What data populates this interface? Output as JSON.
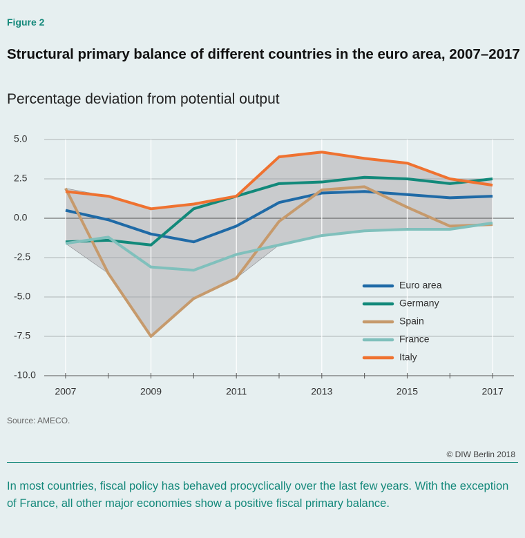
{
  "figure_label": "Figure 2",
  "chart_data": {
    "type": "line",
    "title": "Structural primary balance of different countries in the euro area, 2007–2017",
    "subtitle": "Percentage deviation from potential output",
    "x": [
      2007,
      2008,
      2009,
      2010,
      2011,
      2012,
      2013,
      2014,
      2015,
      2016,
      2017
    ],
    "xlim": [
      2006.5,
      2017.5
    ],
    "xticks": [
      2007,
      2009,
      2011,
      2013,
      2015,
      2017
    ],
    "ylim": [
      -10,
      5
    ],
    "yticks": [
      {
        "value": 5,
        "label": "5.0"
      },
      {
        "value": 2.5,
        "label": "2.5"
      },
      {
        "value": 0,
        "label": "0.0"
      },
      {
        "value": -2.5,
        "label": "-2.5"
      },
      {
        "value": -5,
        "label": "-5.0"
      },
      {
        "value": -7.5,
        "label": "-7.5"
      },
      {
        "value": -10,
        "label": "-10.0"
      }
    ],
    "grid": true,
    "band_color": "#c9cbcd",
    "legend": "lower right",
    "series": [
      {
        "name": "Euro area",
        "color": "#1f6aa6",
        "values": [
          0.5,
          -0.1,
          -1.0,
          -1.5,
          -0.5,
          1.0,
          1.6,
          1.7,
          1.5,
          1.3,
          1.4
        ]
      },
      {
        "name": "Germany",
        "color": "#12897a",
        "values": [
          -1.5,
          -1.4,
          -1.7,
          0.6,
          1.4,
          2.2,
          2.3,
          2.6,
          2.5,
          2.2,
          2.5
        ]
      },
      {
        "name": "Spain",
        "color": "#c69a6c",
        "values": [
          1.9,
          -3.5,
          -7.5,
          -5.1,
          -3.8,
          -0.2,
          1.8,
          2.0,
          0.7,
          -0.5,
          -0.4
        ]
      },
      {
        "name": "France",
        "color": "#80c0bc",
        "values": [
          -1.6,
          -1.2,
          -3.1,
          -3.3,
          -2.3,
          -1.7,
          -1.1,
          -0.8,
          -0.7,
          -0.7,
          -0.3
        ]
      },
      {
        "name": "Italy",
        "color": "#ef7230",
        "values": [
          1.7,
          1.4,
          0.6,
          0.9,
          1.4,
          3.9,
          4.2,
          3.8,
          3.5,
          2.5,
          2.1
        ]
      }
    ]
  },
  "source": "Source: AMECO.",
  "copyright": "© DIW Berlin 2018",
  "caption": "In most countries, fiscal policy has behaved procyclically over the last few years. With the exception of France, all other major economies show a positive fiscal primary balance."
}
